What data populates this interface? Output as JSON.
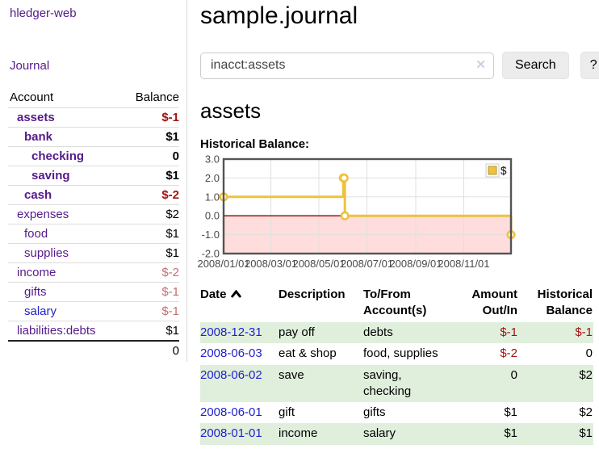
{
  "colors": {
    "brand_purple": "#551a8b",
    "link_blue": "#2222cc",
    "negative_strong": "#a01310",
    "negative_soft": "#c07070",
    "row_stripe_green": "#e0efdc",
    "series_gold": "#edc240",
    "negative_region_pink": "#ffdddd",
    "zero_line_red": "#8b0000"
  },
  "sidebar": {
    "brand": "hledger-web",
    "journal_link": "Journal",
    "headers": {
      "account": "Account",
      "balance": "Balance"
    },
    "accounts": [
      {
        "name": "assets",
        "indent": 1,
        "bold": true,
        "balance": "$-1",
        "balance_tone": "negative-strong"
      },
      {
        "name": "bank",
        "indent": 2,
        "bold": true,
        "balance": "$1",
        "balance_tone": "normal"
      },
      {
        "name": "checking",
        "indent": 3,
        "bold": true,
        "balance": "0",
        "balance_tone": "normal"
      },
      {
        "name": "saving",
        "indent": 3,
        "bold": true,
        "balance": "$1",
        "balance_tone": "normal"
      },
      {
        "name": "cash",
        "indent": 2,
        "bold": true,
        "balance": "$-2",
        "balance_tone": "negative-strong"
      },
      {
        "name": "expenses",
        "indent": 1,
        "bold": false,
        "balance": "$2",
        "balance_tone": "normal"
      },
      {
        "name": "food",
        "indent": 2,
        "bold": false,
        "balance": "$1",
        "balance_tone": "normal"
      },
      {
        "name": "supplies",
        "indent": 2,
        "bold": false,
        "balance": "$1",
        "balance_tone": "normal"
      },
      {
        "name": "income",
        "indent": 1,
        "bold": false,
        "balance": "$-2",
        "balance_tone": "negative-soft"
      },
      {
        "name": "gifts",
        "indent": 2,
        "bold": false,
        "balance": "$-1",
        "balance_tone": "negative-soft"
      },
      {
        "name": "salary",
        "indent": 2,
        "bold": false,
        "link_tone": "blue",
        "balance": "$-1",
        "balance_tone": "negative-soft"
      },
      {
        "name": "liabilities:debts",
        "indent": 1,
        "bold": false,
        "balance": "$1",
        "balance_tone": "normal"
      }
    ],
    "total": "0"
  },
  "main": {
    "title": "sample.journal",
    "search": {
      "value": "inacct:assets",
      "clear_icon": "✕",
      "search_button": "Search",
      "help_button": "?"
    },
    "account_heading": "assets",
    "chart_heading": "Historical Balance:"
  },
  "chart_data": {
    "type": "line",
    "style": "steps",
    "title": "Historical Balance",
    "series": [
      {
        "name": "$",
        "color": "#edc240",
        "points": [
          [
            "2008-01-01",
            1
          ],
          [
            "2008-06-01",
            2
          ],
          [
            "2008-06-02",
            2
          ],
          [
            "2008-06-03",
            0
          ],
          [
            "2008-12-31",
            -1
          ]
        ]
      }
    ],
    "x_ticks": [
      "2008/01/01",
      "2008/03/01",
      "2008/05/01",
      "2008/07/01",
      "2008/09/01",
      "2008/11/01"
    ],
    "y_ticks": [
      3.0,
      2.0,
      1.0,
      0.0,
      -1.0,
      -2.0
    ],
    "xlim": [
      "2008-01-01",
      "2008-12-31"
    ],
    "ylim": [
      -2,
      3
    ],
    "grid": true,
    "negative_region": true,
    "legend": {
      "label": "$",
      "position": "top-right"
    }
  },
  "register": {
    "columns": {
      "date": "Date",
      "description": "Description",
      "accounts": "To/From Account(s)",
      "amount": "Amount Out/In",
      "balance": "Historical Balance"
    },
    "sort_icon": "chevron-up",
    "rows": [
      {
        "date": "2008-12-31",
        "description": "pay off",
        "accounts": "debts",
        "amount": "$-1",
        "amount_neg": true,
        "balance": "$-1",
        "balance_neg": true
      },
      {
        "date": "2008-06-03",
        "description": "eat & shop",
        "accounts": "food, supplies",
        "amount": "$-2",
        "amount_neg": true,
        "balance": "0",
        "balance_neg": false
      },
      {
        "date": "2008-06-02",
        "description": "save",
        "accounts": "saving, checking",
        "amount": "0",
        "amount_neg": false,
        "balance": "$2",
        "balance_neg": false
      },
      {
        "date": "2008-06-01",
        "description": "gift",
        "accounts": "gifts",
        "amount": "$1",
        "amount_neg": false,
        "balance": "$2",
        "balance_neg": false
      },
      {
        "date": "2008-01-01",
        "description": "income",
        "accounts": "salary",
        "amount": "$1",
        "amount_neg": false,
        "balance": "$1",
        "balance_neg": false
      }
    ]
  }
}
